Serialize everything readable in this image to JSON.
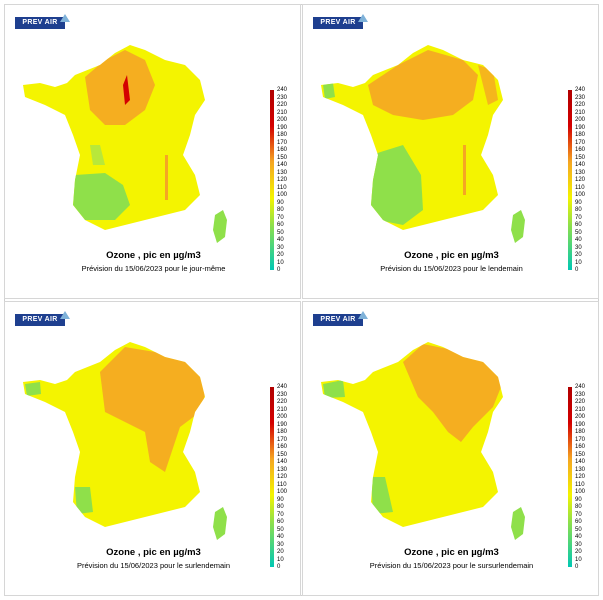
{
  "logo_text": "PREV AIR",
  "legend_ticks": [
    "240",
    "230",
    "220",
    "210",
    "200",
    "190",
    "180",
    "170",
    "160",
    "150",
    "140",
    "130",
    "120",
    "110",
    "100",
    "90",
    "80",
    "70",
    "60",
    "50",
    "40",
    "30",
    "20",
    "10",
    "0"
  ],
  "colors": {
    "low": "#00c8b4",
    "mid": "#8fe04a",
    "yellow": "#f4f400",
    "orange": "#f5a623",
    "red": "#d40000"
  },
  "panels": [
    {
      "title": "Ozone , pic en µg/m3",
      "subtitle": "Prévision du 15/06/2023 pour le jour-même",
      "hot": "north-center"
    },
    {
      "title": "Ozone , pic en µg/m3",
      "subtitle": "Prévision du 15/06/2023 pour le lendemain",
      "hot": "north-wide"
    },
    {
      "title": "Ozone , pic en µg/m3",
      "subtitle": "Prévision du 15/06/2023 pour le surlendemain",
      "hot": "north-east"
    },
    {
      "title": "Ozone , pic en µg/m3",
      "subtitle": "Prévision du 15/06/2023 pour le sursurlendemain",
      "hot": "east"
    }
  ]
}
